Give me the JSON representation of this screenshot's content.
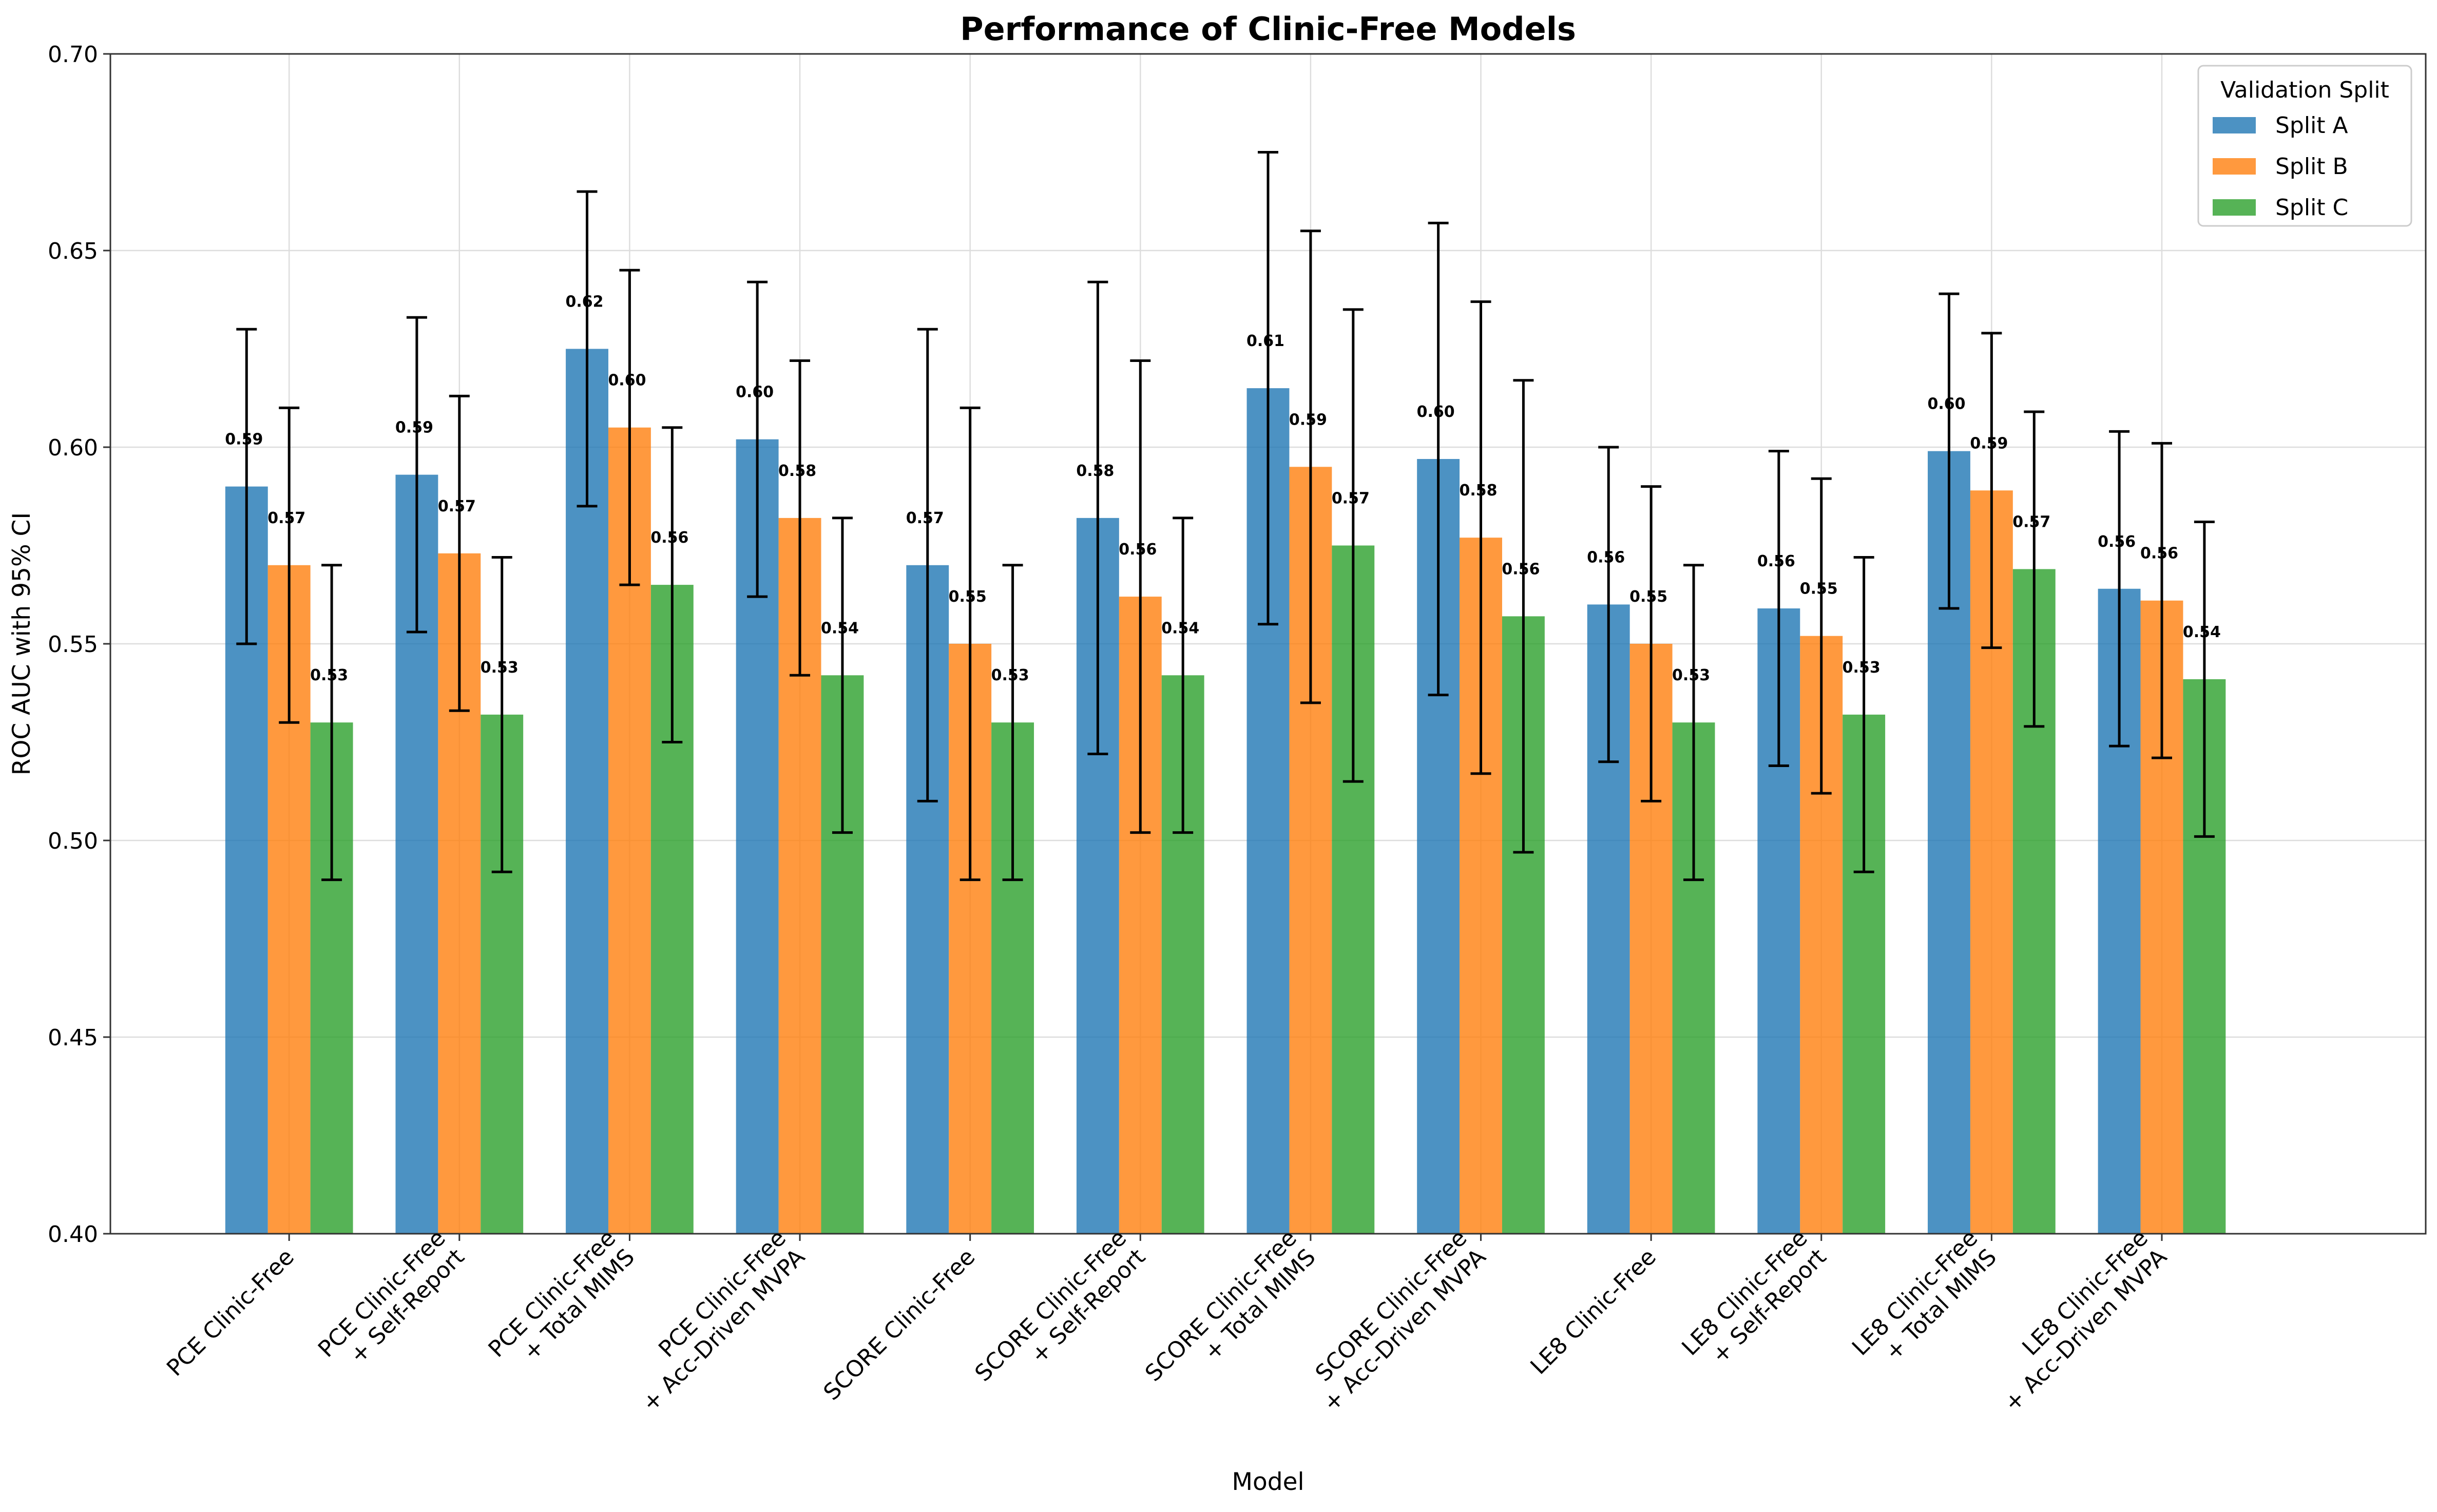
{
  "chart_data": {
    "type": "bar",
    "title": "Performance of Clinic-Free Models",
    "xlabel": "Model",
    "ylabel": "ROC AUC with 95% CI",
    "ylim": [
      0.4,
      0.7
    ],
    "yticks": [
      "0.40",
      "0.45",
      "0.50",
      "0.55",
      "0.60",
      "0.65",
      "0.70"
    ],
    "grid": true,
    "legend": {
      "title": "Validation Split",
      "placement": "top-right"
    },
    "categories": [
      [
        "PCE Clinic-Free"
      ],
      [
        "PCE Clinic-Free",
        "+ Self-Report"
      ],
      [
        "PCE Clinic-Free",
        "+ Total MIMS"
      ],
      [
        "PCE Clinic-Free",
        "+ Acc-Driven MVPA"
      ],
      [
        "SCORE Clinic-Free"
      ],
      [
        "SCORE Clinic-Free",
        "+ Self-Report"
      ],
      [
        "SCORE Clinic-Free",
        "+ Total MIMS"
      ],
      [
        "SCORE Clinic-Free",
        "+ Acc-Driven MVPA"
      ],
      [
        "LE8 Clinic-Free"
      ],
      [
        "LE8 Clinic-Free",
        "+ Self-Report"
      ],
      [
        "LE8 Clinic-Free",
        "+ Total MIMS"
      ],
      [
        "LE8 Clinic-Free",
        "+ Acc-Driven MVPA"
      ]
    ],
    "series": [
      {
        "name": "Split A",
        "color": "#1f77b4",
        "values": [
          0.59,
          0.593,
          0.625,
          0.602,
          0.57,
          0.582,
          0.615,
          0.597,
          0.56,
          0.559,
          0.599,
          0.564
        ],
        "ci_low": [
          0.55,
          0.553,
          0.585,
          0.562,
          0.51,
          0.522,
          0.555,
          0.537,
          0.52,
          0.519,
          0.559,
          0.524
        ],
        "ci_high": [
          0.63,
          0.633,
          0.665,
          0.642,
          0.63,
          0.642,
          0.675,
          0.657,
          0.6,
          0.599,
          0.639,
          0.604
        ],
        "labels": [
          "0.59",
          "0.59",
          "0.62",
          "0.60",
          "0.57",
          "0.58",
          "0.61",
          "0.60",
          "0.56",
          "0.56",
          "0.60",
          "0.56"
        ]
      },
      {
        "name": "Split B",
        "color": "#ff7f0e",
        "values": [
          0.57,
          0.573,
          0.605,
          0.582,
          0.55,
          0.562,
          0.595,
          0.577,
          0.55,
          0.552,
          0.589,
          0.561
        ],
        "ci_low": [
          0.53,
          0.533,
          0.565,
          0.542,
          0.49,
          0.502,
          0.535,
          0.517,
          0.51,
          0.512,
          0.549,
          0.521
        ],
        "ci_high": [
          0.61,
          0.613,
          0.645,
          0.622,
          0.61,
          0.622,
          0.655,
          0.637,
          0.59,
          0.592,
          0.629,
          0.601
        ],
        "labels": [
          "0.57",
          "0.57",
          "0.60",
          "0.58",
          "0.55",
          "0.56",
          "0.59",
          "0.58",
          "0.55",
          "0.55",
          "0.59",
          "0.56"
        ]
      },
      {
        "name": "Split C",
        "color": "#2ca02c",
        "values": [
          0.53,
          0.532,
          0.565,
          0.542,
          0.53,
          0.542,
          0.575,
          0.557,
          0.53,
          0.532,
          0.569,
          0.541
        ],
        "ci_low": [
          0.49,
          0.492,
          0.525,
          0.502,
          0.49,
          0.502,
          0.515,
          0.497,
          0.49,
          0.492,
          0.529,
          0.501
        ],
        "ci_high": [
          0.57,
          0.572,
          0.605,
          0.582,
          0.57,
          0.582,
          0.635,
          0.617,
          0.57,
          0.572,
          0.609,
          0.581
        ],
        "labels": [
          "0.53",
          "0.53",
          "0.56",
          "0.54",
          "0.53",
          "0.54",
          "0.57",
          "0.56",
          "0.53",
          "0.53",
          "0.57",
          "0.54"
        ]
      }
    ]
  }
}
